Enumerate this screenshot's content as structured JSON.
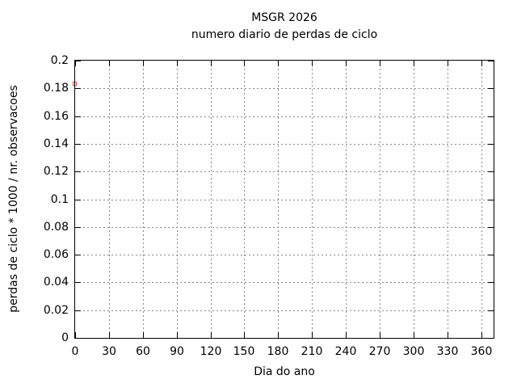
{
  "chart_data": {
    "type": "scatter",
    "title": "MSGR 2026",
    "subtitle": "numero diario de perdas de ciclo",
    "xlabel": "Dia do ano",
    "ylabel": "perdas de ciclo * 1000 / nr. observacoes",
    "xlim": [
      0,
      371
    ],
    "ylim": [
      0,
      0.2
    ],
    "xticks": [
      0,
      30,
      60,
      90,
      120,
      150,
      180,
      210,
      240,
      270,
      300,
      330,
      360
    ],
    "yticks": [
      0,
      0.02,
      0.04,
      0.06,
      0.08,
      0.1,
      0.12,
      0.14,
      0.16,
      0.18,
      0.2
    ],
    "grid": true,
    "legend": "none",
    "series": [
      {
        "marker": "open-square",
        "color": "#e24a4a",
        "points": [
          {
            "x": 0,
            "y": 0.183
          }
        ]
      }
    ],
    "colors": {
      "background": "#ffffff",
      "border": "#000000",
      "grid": "#878787",
      "text": "#000000"
    }
  }
}
